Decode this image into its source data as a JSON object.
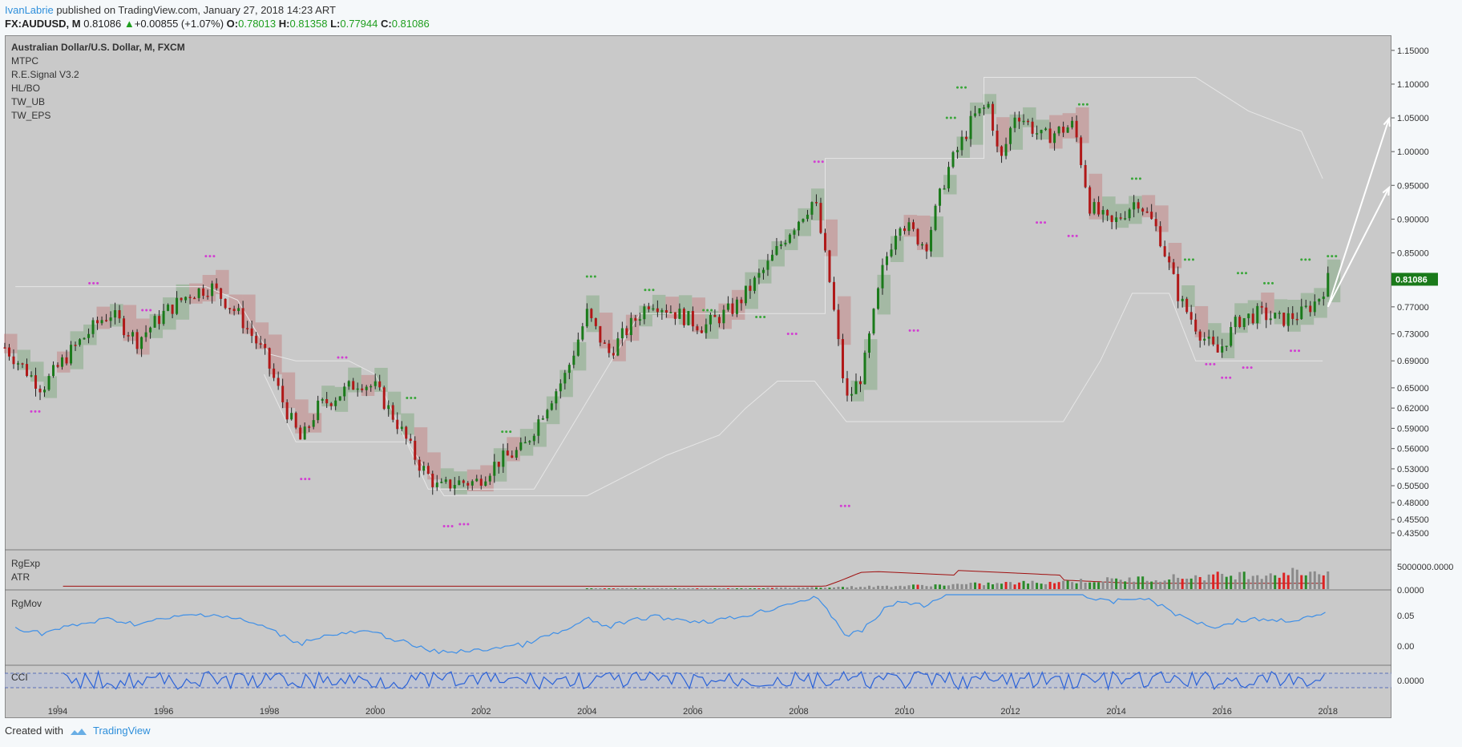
{
  "header": {
    "author": "IvanLabrie",
    "published_text": " published on TradingView.com, January 27, 2018 14:23 ART",
    "symbol": "FX:AUDUSD, M",
    "last": "0.81086",
    "arrow": "▲",
    "change": "+0.00855 (+1.07%)",
    "o_label": "O:",
    "o_val": "0.78013",
    "h_label": "H:",
    "h_val": "0.81358",
    "l_label": "L:",
    "l_val": "0.77944",
    "c_label": "C:",
    "c_val": "0.81086"
  },
  "legend": {
    "title": "Australian Dollar/U.S. Dollar, M, FXCM",
    "items": [
      "MTPC",
      "R.E.Signal V3.2",
      "HL/BO",
      "TW_UB",
      "TW_EPS"
    ]
  },
  "panes": {
    "rgexp": "RgExp",
    "atr": "ATR",
    "rgmov": "RgMov",
    "cci": "CCI"
  },
  "footer": {
    "created": "Created with",
    "brand": "TradingView"
  },
  "colors": {
    "background": "#c9c9c9",
    "up_candle": "#1a7a1a",
    "down_candle": "#b01818",
    "price_tag": "#1a7a1a",
    "rgmov_line": "#3d8fe8",
    "rgexp_line": "#a01010"
  },
  "chart_data": {
    "type": "line",
    "title": "Australian Dollar/U.S. Dollar, M, FXCM",
    "x_ticks": [
      "1994",
      "1996",
      "1998",
      "2000",
      "2002",
      "2004",
      "2006",
      "2008",
      "2010",
      "2012",
      "2014",
      "2016",
      "2018"
    ],
    "y_ticks": [
      "1.15000",
      "1.10000",
      "1.05000",
      "1.00000",
      "0.95000",
      "0.90000",
      "0.85000",
      "0.81086",
      "0.77000",
      "0.73000",
      "0.69000",
      "0.65000",
      "0.62000",
      "0.59000",
      "0.56000",
      "0.53000",
      "0.50500",
      "0.48000",
      "0.45500",
      "0.43500"
    ],
    "last_price": "0.81086",
    "x_range": [
      1993.0,
      2019.2
    ],
    "price_series": [
      {
        "x": 1993.0,
        "y": 0.71
      },
      {
        "x": 1993.7,
        "y": 0.65
      },
      {
        "x": 1994.2,
        "y": 0.7
      },
      {
        "x": 1994.8,
        "y": 0.75
      },
      {
        "x": 1995.0,
        "y": 0.76
      },
      {
        "x": 1995.5,
        "y": 0.72
      },
      {
        "x": 1996.0,
        "y": 0.76
      },
      {
        "x": 1996.5,
        "y": 0.79
      },
      {
        "x": 1996.9,
        "y": 0.8
      },
      {
        "x": 1997.4,
        "y": 0.76
      },
      {
        "x": 1997.9,
        "y": 0.7
      },
      {
        "x": 1998.3,
        "y": 0.62
      },
      {
        "x": 1998.6,
        "y": 0.57
      },
      {
        "x": 1998.9,
        "y": 0.62
      },
      {
        "x": 1999.3,
        "y": 0.64
      },
      {
        "x": 1999.7,
        "y": 0.66
      },
      {
        "x": 2000.0,
        "y": 0.65
      },
      {
        "x": 2000.4,
        "y": 0.6
      },
      {
        "x": 2000.8,
        "y": 0.54
      },
      {
        "x": 2001.2,
        "y": 0.5
      },
      {
        "x": 2001.5,
        "y": 0.51
      },
      {
        "x": 2001.9,
        "y": 0.51
      },
      {
        "x": 2002.3,
        "y": 0.54
      },
      {
        "x": 2002.8,
        "y": 0.56
      },
      {
        "x": 2003.2,
        "y": 0.62
      },
      {
        "x": 2003.6,
        "y": 0.67
      },
      {
        "x": 2004.0,
        "y": 0.76
      },
      {
        "x": 2004.4,
        "y": 0.7
      },
      {
        "x": 2004.8,
        "y": 0.74
      },
      {
        "x": 2005.2,
        "y": 0.78
      },
      {
        "x": 2005.7,
        "y": 0.76
      },
      {
        "x": 2006.2,
        "y": 0.74
      },
      {
        "x": 2006.8,
        "y": 0.77
      },
      {
        "x": 2007.4,
        "y": 0.83
      },
      {
        "x": 2007.8,
        "y": 0.88
      },
      {
        "x": 2008.3,
        "y": 0.93
      },
      {
        "x": 2008.6,
        "y": 0.8
      },
      {
        "x": 2008.9,
        "y": 0.63
      },
      {
        "x": 2009.2,
        "y": 0.67
      },
      {
        "x": 2009.6,
        "y": 0.83
      },
      {
        "x": 2009.9,
        "y": 0.9
      },
      {
        "x": 2010.4,
        "y": 0.86
      },
      {
        "x": 2010.8,
        "y": 0.97
      },
      {
        "x": 2011.3,
        "y": 1.05
      },
      {
        "x": 2011.6,
        "y": 1.07
      },
      {
        "x": 2011.8,
        "y": 0.98
      },
      {
        "x": 2012.1,
        "y": 1.06
      },
      {
        "x": 2012.6,
        "y": 1.02
      },
      {
        "x": 2013.2,
        "y": 1.04
      },
      {
        "x": 2013.5,
        "y": 0.92
      },
      {
        "x": 2013.9,
        "y": 0.89
      },
      {
        "x": 2014.4,
        "y": 0.93
      },
      {
        "x": 2014.8,
        "y": 0.88
      },
      {
        "x": 2015.2,
        "y": 0.78
      },
      {
        "x": 2015.6,
        "y": 0.73
      },
      {
        "x": 2015.9,
        "y": 0.7
      },
      {
        "x": 2016.3,
        "y": 0.75
      },
      {
        "x": 2016.7,
        "y": 0.76
      },
      {
        "x": 2017.1,
        "y": 0.75
      },
      {
        "x": 2017.5,
        "y": 0.76
      },
      {
        "x": 2017.8,
        "y": 0.78
      },
      {
        "x": 2018.0,
        "y": 0.81
      }
    ]
  }
}
